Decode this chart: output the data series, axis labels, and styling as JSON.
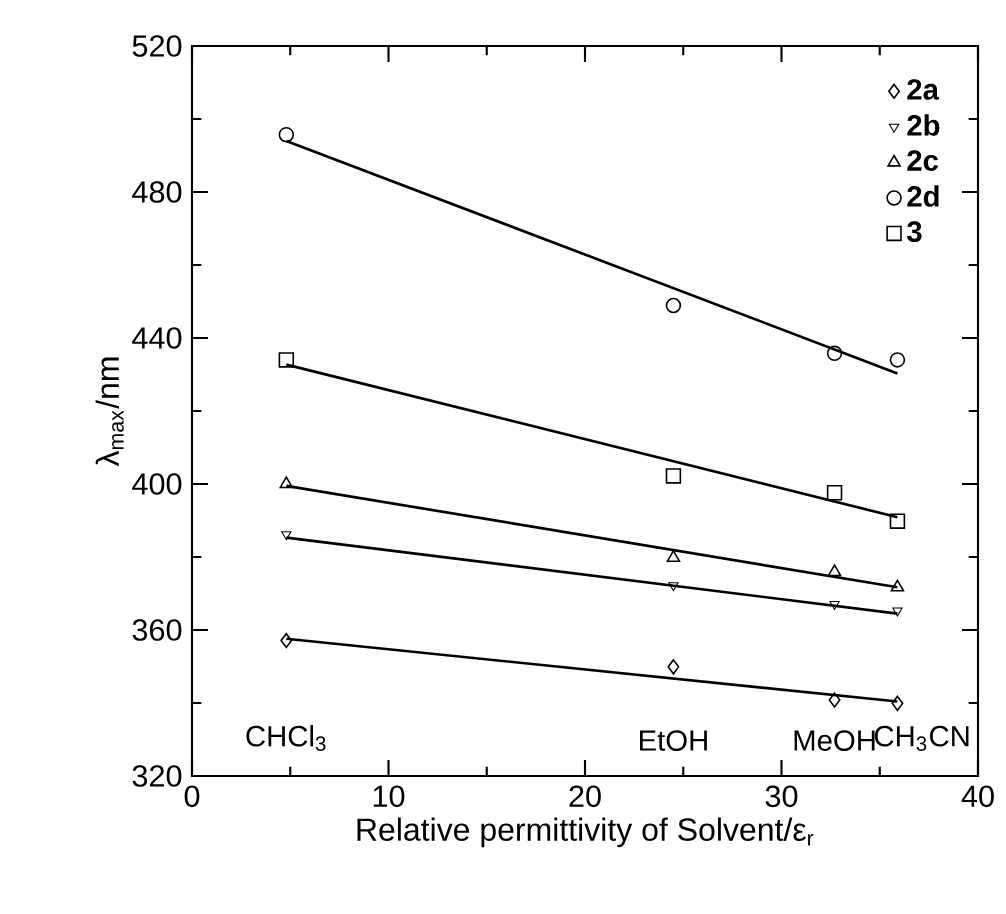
{
  "chart_data": {
    "type": "scatter",
    "xlabel": "Relative permittivity of Solvent/ε$_{r}$",
    "ylabel": "λ$_{max}$/nm",
    "xlim": [
      0,
      40
    ],
    "ylim": [
      320,
      520
    ],
    "xticks": [
      0,
      {
        "value": 5,
        "label": null
      },
      10,
      {
        "value": 15,
        "label": null
      },
      20,
      {
        "value": 25,
        "label": null
      },
      30,
      {
        "value": 35,
        "label": null
      },
      40
    ],
    "yticks": [
      320,
      {
        "value": 340,
        "label": null
      },
      360,
      {
        "value": 380,
        "label": null
      },
      400,
      {
        "value": 420,
        "label": null
      },
      440,
      {
        "value": 460,
        "label": null
      },
      480,
      {
        "value": 500,
        "label": null
      },
      520
    ],
    "grid": false,
    "legend": "top right",
    "series": [
      {
        "name": "2a",
        "marker": "diamond",
        "color": "#000000",
        "x": [
          4.8,
          24.5,
          32.7,
          35.9
        ],
        "values": [
          357.1,
          349.9,
          340.8,
          339.9
        ]
      },
      {
        "name": "2b",
        "marker": "triangle down",
        "color": "#000000",
        "x": [
          4.8,
          24.5,
          32.7,
          35.9
        ],
        "values": [
          386.2,
          372.2,
          367.1,
          365.3
        ]
      },
      {
        "name": "2c",
        "marker": "triangle",
        "color": "#000000",
        "x": [
          4.8,
          24.5,
          32.7,
          35.9
        ],
        "values": [
          400,
          379.8,
          375.9,
          371.7
        ]
      },
      {
        "name": "2d",
        "marker": "circle",
        "color": "#000000",
        "x": [
          4.8,
          24.5,
          32.7,
          35.9
        ],
        "values": [
          495.7,
          448.9,
          435.8,
          434.0
        ]
      },
      {
        "name": "3",
        "marker": "square",
        "color": "#000000",
        "x": [
          4.8,
          24.5,
          32.7,
          35.9
        ],
        "values": [
          434.0,
          402.2,
          397.6,
          389.8
        ]
      },
      {
        "type": "line",
        "marker": "none",
        "line_style": "solid",
        "color": "#000000",
        "x": [
          4.8,
          35.9
        ],
        "values": [
          357.6,
          340.4
        ]
      },
      {
        "type": "line",
        "marker": "none",
        "line_style": "solid",
        "color": "#000000",
        "x": [
          4.8,
          35.9
        ],
        "values": [
          385.3,
          364.5
        ]
      },
      {
        "type": "line",
        "marker": "none",
        "line_style": "solid",
        "color": "#000000",
        "x": [
          4.8,
          35.9
        ],
        "values": [
          399.5,
          371.7
        ]
      },
      {
        "type": "line",
        "marker": "none",
        "line_style": "solid",
        "color": "#000000",
        "x": [
          4.8,
          35.9
        ],
        "values": [
          494.0,
          430.3
        ]
      },
      {
        "type": "line",
        "marker": "none",
        "line_style": "solid",
        "color": "#000000",
        "x": [
          4.8,
          35.9
        ],
        "values": [
          432.7,
          390.9
        ]
      }
    ],
    "annotations": [
      "CHCl$_{3}$",
      "EtOH",
      "MeOH",
      "CH$_{3}$CN"
    ]
  }
}
